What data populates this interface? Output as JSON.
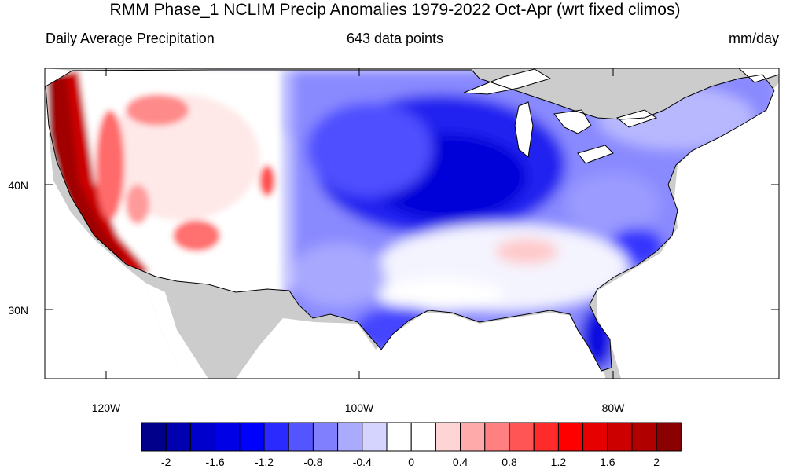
{
  "title": "RMM Phase_1 NCLIM Precip Anomalies 1979-2022 Oct-Apr (wrt fixed climos)",
  "subtitle_left": "Daily Average Precipitation",
  "subtitle_center": "643 data points",
  "subtitle_right": "mm/day",
  "map": {
    "lat_labels": [
      "40N",
      "30N"
    ],
    "lon_labels": [
      "120W",
      "100W",
      "80W"
    ],
    "land_color": "#cccccc",
    "ocean_color": "#ffffff"
  },
  "colorbar": {
    "colors": [
      "#00008b",
      "#0000b0",
      "#0000cd",
      "#0000e6",
      "#0000ff",
      "#2a2aff",
      "#5555ff",
      "#8080ff",
      "#aaaaff",
      "#d4d4ff",
      "#ffffff",
      "#ffffff",
      "#ffd4d4",
      "#ffaaaa",
      "#ff8080",
      "#ff5555",
      "#ff2a2a",
      "#ff0000",
      "#e60000",
      "#cd0000",
      "#b00000",
      "#8b0000"
    ],
    "labels": [
      "-2",
      "-1.6",
      "-1.2",
      "-0.8",
      "-0.4",
      "0",
      "0.4",
      "0.8",
      "1.2",
      "1.6",
      "2"
    ]
  }
}
